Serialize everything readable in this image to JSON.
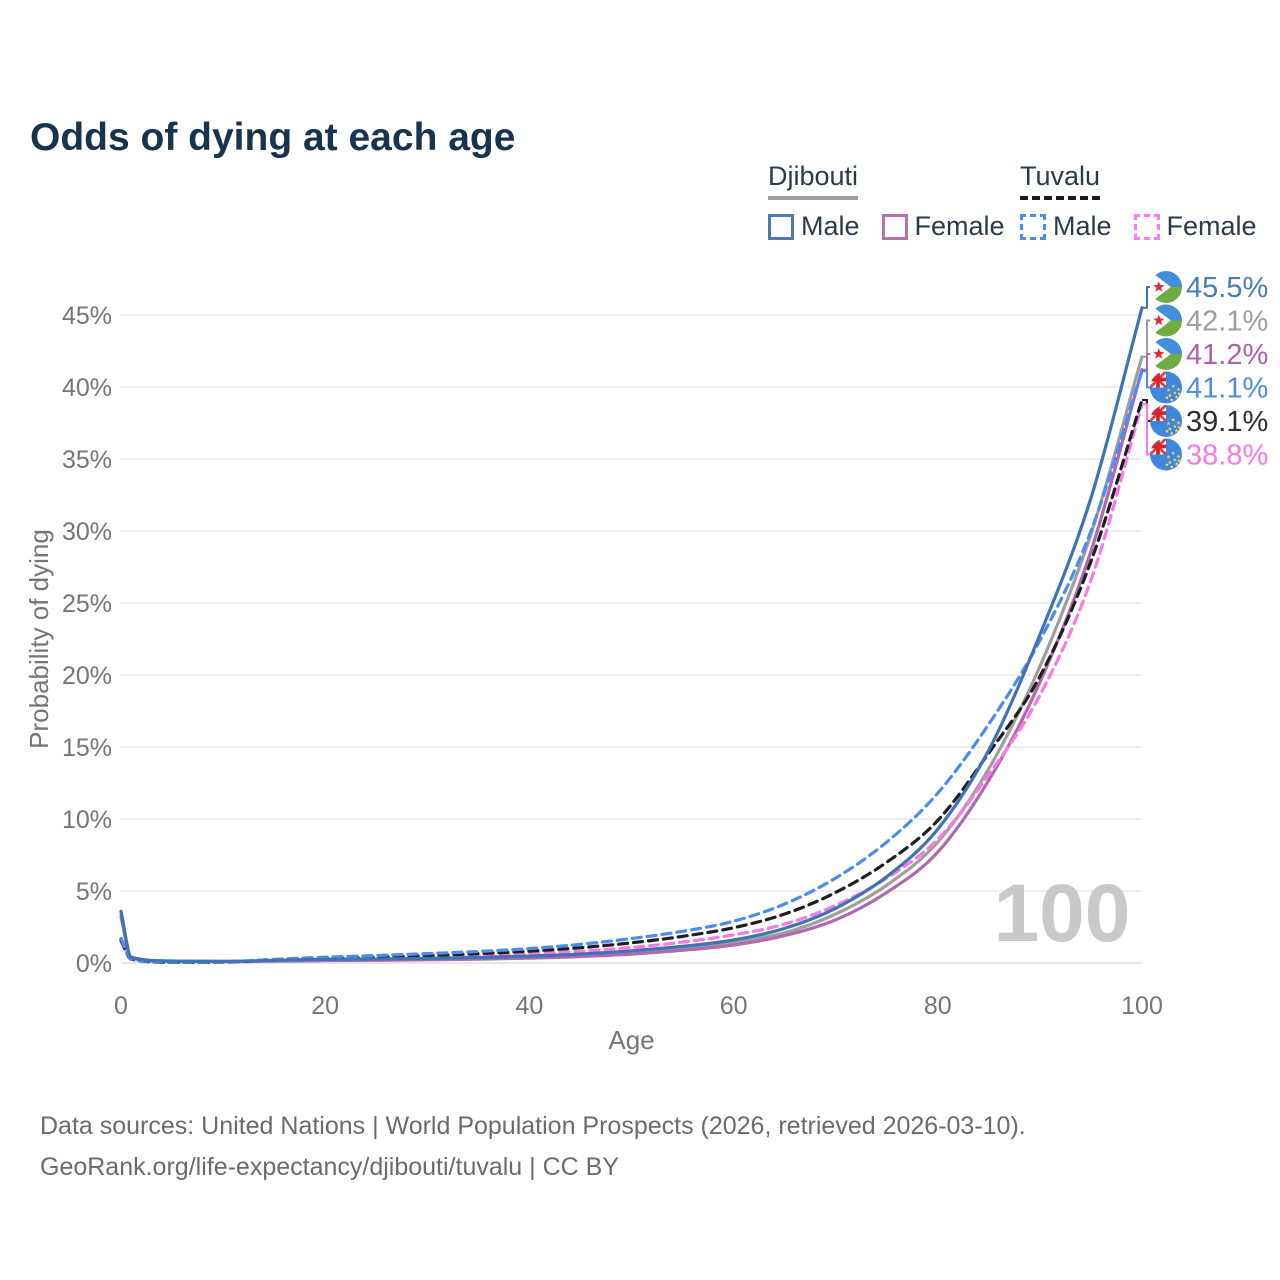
{
  "title": "Odds of dying at each age",
  "legend": {
    "groups": [
      {
        "country": "Djibouti",
        "line_style": "solid",
        "underline_color": "#9e9e9e",
        "items": [
          {
            "label": "Male",
            "color": "#4d7ab2",
            "dash": false
          },
          {
            "label": "Female",
            "color": "#b473a9",
            "dash": false
          }
        ]
      },
      {
        "country": "Tuvalu",
        "line_style": "dashed",
        "underline_color": "#1a1a1a",
        "items": [
          {
            "label": "Male",
            "color": "#4c8cf0",
            "dash": true
          },
          {
            "label": "Female",
            "color": "#fb7bea",
            "dash": true
          }
        ]
      }
    ]
  },
  "chart_data": {
    "type": "line",
    "title": "Odds of dying at each age",
    "xlabel": "Age",
    "ylabel": "Probability of dying",
    "x_ticks": [
      0,
      20,
      40,
      60,
      80,
      100
    ],
    "y_ticks_pct": [
      0,
      5,
      10,
      15,
      20,
      25,
      30,
      35,
      40,
      45
    ],
    "xlim": [
      0,
      100
    ],
    "ylim_pct": [
      0,
      47
    ],
    "grid": "horizontal",
    "legend_position": "top-right",
    "watermark": "100",
    "ages": [
      0,
      1,
      5,
      10,
      15,
      20,
      25,
      30,
      35,
      40,
      45,
      50,
      55,
      60,
      65,
      70,
      75,
      80,
      85,
      90,
      95,
      100
    ],
    "series": [
      {
        "name": "Djibouti Male",
        "slug": "djibouti-male",
        "flag": "djibouti",
        "dash": false,
        "color": "#3e74b4",
        "label_color": "#4a7cba",
        "end_label": "45.5%",
        "values_pct": [
          3.6,
          0.4,
          0.14,
          0.12,
          0.18,
          0.25,
          0.28,
          0.32,
          0.38,
          0.48,
          0.62,
          0.85,
          1.15,
          1.6,
          2.4,
          3.8,
          6.0,
          9.3,
          14.8,
          22.8,
          32.3,
          45.5
        ]
      },
      {
        "name": "Djibouti Total",
        "slug": "djibouti-total",
        "flag": "djibouti",
        "dash": false,
        "color": "#9e9e9e",
        "label_color": "#9e9e9e",
        "end_label": "42.1%",
        "values_pct": [
          3.4,
          0.38,
          0.13,
          0.11,
          0.15,
          0.2,
          0.23,
          0.27,
          0.32,
          0.4,
          0.53,
          0.72,
          1.0,
          1.45,
          2.1,
          3.4,
          5.4,
          8.4,
          13.5,
          20.6,
          29.8,
          42.1
        ]
      },
      {
        "name": "Djibouti Female",
        "slug": "djibouti-female",
        "flag": "djibouti",
        "dash": false,
        "color": "#b168ae",
        "label_color": "#ad62ad",
        "end_label": "41.2%",
        "values_pct": [
          3.2,
          0.36,
          0.12,
          0.1,
          0.13,
          0.17,
          0.19,
          0.22,
          0.27,
          0.34,
          0.45,
          0.62,
          0.88,
          1.25,
          1.9,
          3.0,
          4.9,
          7.7,
          12.7,
          19.5,
          28.6,
          41.2
        ]
      },
      {
        "name": "Tuvalu Male",
        "slug": "tuvalu-male",
        "flag": "tuvalu",
        "dash": true,
        "color": "#4c8cf0",
        "label_color": "#4c8cf0",
        "end_label": "41.1%",
        "values_pct": [
          1.7,
          0.3,
          0.06,
          0.08,
          0.25,
          0.4,
          0.52,
          0.65,
          0.8,
          1.0,
          1.3,
          1.7,
          2.2,
          2.9,
          4.1,
          5.9,
          8.4,
          11.8,
          16.6,
          22.4,
          30.0,
          41.1
        ]
      },
      {
        "name": "Tuvalu Total",
        "slug": "tuvalu-total",
        "flag": "tuvalu",
        "dash": true,
        "color": "#1f1f1f",
        "label_color": "#2e2e2e",
        "end_label": "39.1%",
        "values_pct": [
          1.6,
          0.28,
          0.05,
          0.07,
          0.2,
          0.31,
          0.41,
          0.52,
          0.65,
          0.82,
          1.06,
          1.4,
          1.85,
          2.45,
          3.4,
          4.9,
          7.0,
          9.9,
          14.6,
          19.9,
          27.9,
          39.1
        ]
      },
      {
        "name": "Tuvalu Female",
        "slug": "tuvalu-female",
        "flag": "tuvalu",
        "dash": true,
        "color": "#f679e6",
        "label_color": "#f679e6",
        "end_label": "38.8%",
        "values_pct": [
          1.5,
          0.26,
          0.05,
          0.06,
          0.16,
          0.23,
          0.3,
          0.38,
          0.48,
          0.62,
          0.82,
          1.08,
          1.45,
          1.95,
          2.7,
          4.0,
          5.9,
          8.6,
          13.1,
          18.6,
          26.6,
          38.8
        ]
      }
    ]
  },
  "palette": {
    "title_text": "#17334f",
    "axis_text": "#757575",
    "grid_line": "#e8e8e8",
    "watermark": "#c9c9c9",
    "footer_text": "#6b6b6b"
  },
  "footer": {
    "line1": "Data sources: United Nations | World Population Prospects (2026, retrieved 2026-03-10).",
    "line2": "GeoRank.org/life-expectancy/djibouti/tuvalu | CC BY"
  }
}
